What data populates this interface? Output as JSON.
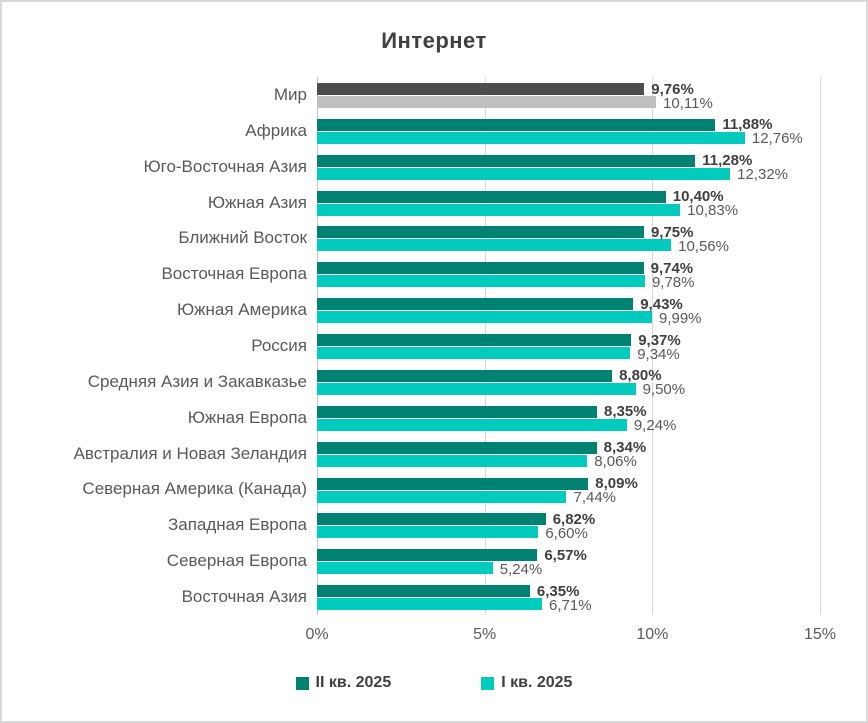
{
  "title": "Интернет",
  "colors": {
    "series1": "#008272",
    "series2": "#00CBBC",
    "world_series1": "#4D4D4D",
    "world_series2": "#BFBFBF",
    "gridline": "#D9D9D9",
    "value_label_bold": "#404040",
    "value_label_regular": "#595959",
    "category_label": "#595959",
    "frame_border": "#D9D9D9"
  },
  "chart_data": {
    "type": "bar",
    "orientation": "horizontal",
    "title": "Интернет",
    "xlabel": "",
    "ylabel": "",
    "xlim": [
      0,
      15
    ],
    "grid": true,
    "x_axis_ticks": [
      "0%",
      "5%",
      "10%",
      "15%"
    ],
    "x_axis_tick_values": [
      0,
      5,
      10,
      15
    ],
    "legend_position": "bottom",
    "series_names": [
      "II кв. 2025",
      "I кв. 2025"
    ],
    "categories": [
      {
        "name": "Мир",
        "v1": 9.76,
        "v2": 10.11,
        "label1": "9,76%",
        "label2": "10,11%",
        "world": true
      },
      {
        "name": "Африка",
        "v1": 11.88,
        "v2": 12.76,
        "label1": "11,88%",
        "label2": "12,76%",
        "world": false
      },
      {
        "name": "Юго-Восточная Азия",
        "v1": 11.28,
        "v2": 12.32,
        "label1": "11,28%",
        "label2": "12,32%",
        "world": false
      },
      {
        "name": "Южная Азия",
        "v1": 10.4,
        "v2": 10.83,
        "label1": "10,40%",
        "label2": "10,83%",
        "world": false
      },
      {
        "name": "Ближний Восток",
        "v1": 9.75,
        "v2": 10.56,
        "label1": "9,75%",
        "label2": "10,56%",
        "world": false
      },
      {
        "name": "Восточная Европа",
        "v1": 9.74,
        "v2": 9.78,
        "label1": "9,74%",
        "label2": "9,78%",
        "world": false
      },
      {
        "name": "Южная Америка",
        "v1": 9.43,
        "v2": 9.99,
        "label1": "9,43%",
        "label2": "9,99%",
        "world": false
      },
      {
        "name": "Россия",
        "v1": 9.37,
        "v2": 9.34,
        "label1": "9,37%",
        "label2": "9,34%",
        "world": false
      },
      {
        "name": "Средняя Азия и Закавказье",
        "v1": 8.8,
        "v2": 9.5,
        "label1": "8,80%",
        "label2": "9,50%",
        "world": false
      },
      {
        "name": "Южная Европа",
        "v1": 8.35,
        "v2": 9.24,
        "label1": "8,35%",
        "label2": "9,24%",
        "world": false
      },
      {
        "name": "Австралия и Новая Зеландия",
        "v1": 8.34,
        "v2": 8.06,
        "label1": "8,34%",
        "label2": "8,06%",
        "world": false
      },
      {
        "name": "Северная Америка (Канада)",
        "v1": 8.09,
        "v2": 7.44,
        "label1": "8,09%",
        "label2": "7,44%",
        "world": false
      },
      {
        "name": "Западная Европа",
        "v1": 6.82,
        "v2": 6.6,
        "label1": "6,82%",
        "label2": "6,60%",
        "world": false
      },
      {
        "name": "Северная Европа",
        "v1": 6.57,
        "v2": 5.24,
        "label1": "6,57%",
        "label2": "5,24%",
        "world": false
      },
      {
        "name": "Восточная Азия",
        "v1": 6.35,
        "v2": 6.71,
        "label1": "6,35%",
        "label2": "6,71%",
        "world": false
      }
    ],
    "legend": [
      {
        "label": "II кв. 2025"
      },
      {
        "label": "I кв. 2025"
      }
    ]
  }
}
